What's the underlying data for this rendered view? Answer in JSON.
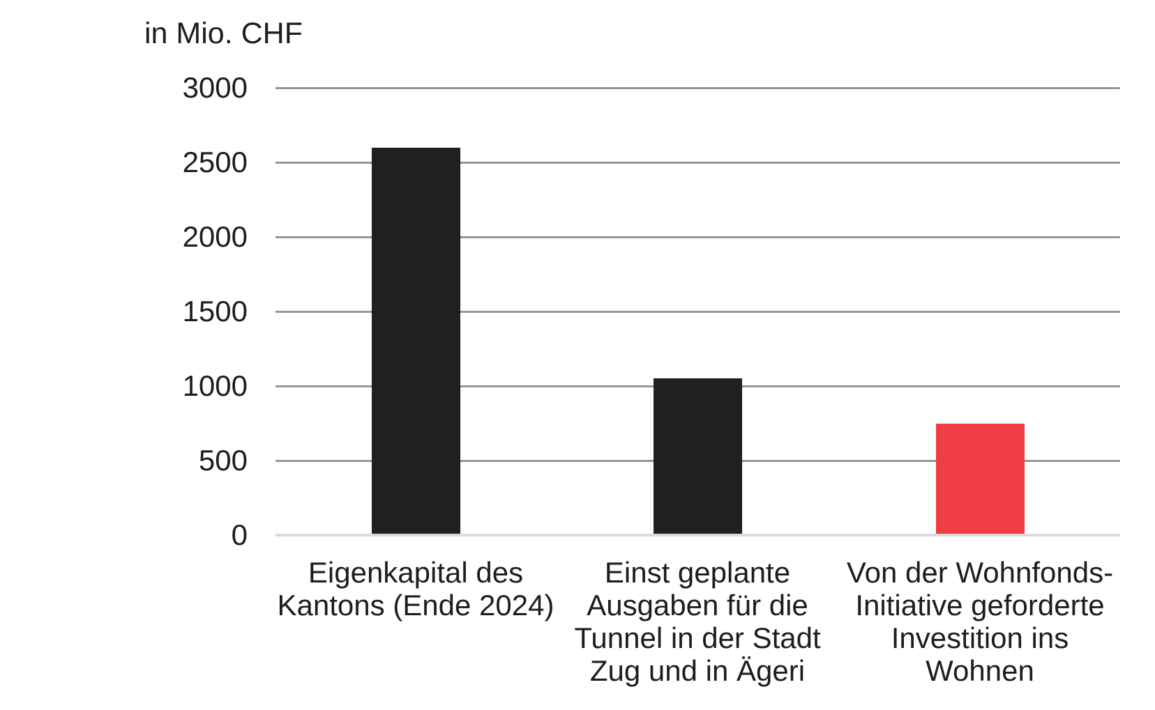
{
  "chart_data": {
    "type": "bar",
    "title": "in Mio. CHF",
    "xlabel": "",
    "ylabel": "in Mio. CHF",
    "categories": [
      "Eigenkapital des Kantons (Ende 2024)",
      "Einst geplante Ausgaben für die Tunnel in der Stadt Zug und in Ägeri",
      "Von der Wohnfonds-Initiative geforderte Investition ins Wohnen"
    ],
    "category_lines": [
      [
        "Eigenkapital des",
        "Kantons (Ende 2024)"
      ],
      [
        "Einst geplante",
        "Ausgaben für die",
        "Tunnel in der Stadt",
        "Zug und in Ägeri"
      ],
      [
        "Von der Wohnfonds-",
        "Initiative geforderte",
        "Investition ins",
        "Wohnen"
      ]
    ],
    "values": [
      2600,
      1050,
      750
    ],
    "unit": "Mio. CHF",
    "bar_colors": [
      "#221f20",
      "#221f20",
      "#ee3e43"
    ],
    "yticks": [
      3000,
      2500,
      2000,
      1500,
      1000,
      500,
      0
    ],
    "ylim": [
      0,
      3000
    ],
    "grid": "horizontal",
    "legend": "none",
    "colors": {
      "background": "#ffffff",
      "text": "#1d1d1b",
      "gridline": "#969696",
      "baseline": "#dadada",
      "bar_dark": "#221f20",
      "bar_accent": "#ee3e43"
    }
  }
}
